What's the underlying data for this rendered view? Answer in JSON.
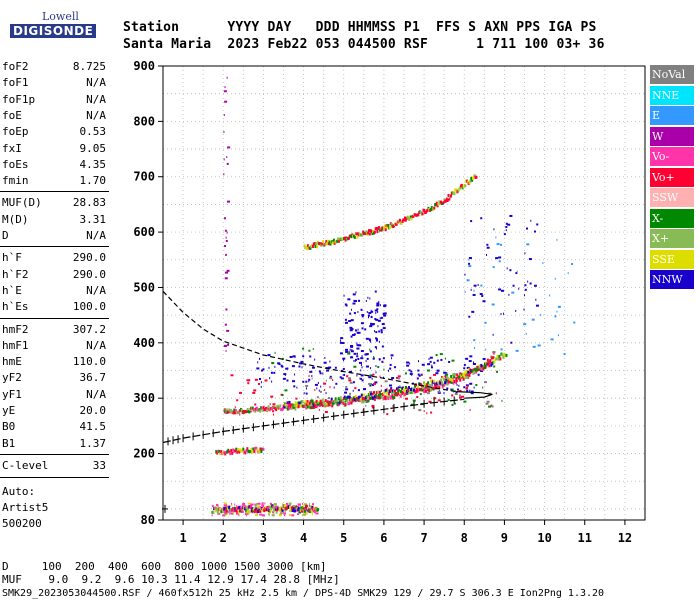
{
  "logo": {
    "line1": "Lowell",
    "line2": "DIGISONDE"
  },
  "header": {
    "row1": "Station      YYYY DAY   DDD HHMMSS P1  FFS S AXN PPS IGA PS",
    "row2": "Santa Maria  2023 Feb22 053 044500 RSF      1 711 100 03+ 36"
  },
  "params": {
    "group1": [
      {
        "name": "foF2",
        "value": "8.725"
      },
      {
        "name": "foF1",
        "value": "N/A"
      },
      {
        "name": "foF1p",
        "value": "N/A"
      },
      {
        "name": "foE",
        "value": "N/A"
      },
      {
        "name": "foEp",
        "value": "0.53"
      },
      {
        "name": "fxI",
        "value": "9.05"
      },
      {
        "name": "foEs",
        "value": "4.35"
      },
      {
        "name": "fmin",
        "value": "1.70"
      }
    ],
    "group2": [
      {
        "name": "MUF(D)",
        "value": "28.83"
      },
      {
        "name": "M(D)",
        "value": "3.31"
      },
      {
        "name": "D",
        "value": "N/A"
      }
    ],
    "group3": [
      {
        "name": "h`F",
        "value": "290.0"
      },
      {
        "name": "h`F2",
        "value": "290.0"
      },
      {
        "name": "h`E",
        "value": "N/A"
      },
      {
        "name": "h`Es",
        "value": "100.0"
      }
    ],
    "group4": [
      {
        "name": "hmF2",
        "value": "307.2"
      },
      {
        "name": "hmF1",
        "value": "N/A"
      },
      {
        "name": "hmE",
        "value": "110.0"
      },
      {
        "name": "yF2",
        "value": "36.7"
      },
      {
        "name": "yF1",
        "value": "N/A"
      },
      {
        "name": "yE",
        "value": "20.0"
      },
      {
        "name": "B0",
        "value": "41.5"
      },
      {
        "name": "B1",
        "value": "1.37"
      }
    ],
    "group5": [
      {
        "name": "C-level",
        "value": "33"
      }
    ]
  },
  "autoscale": {
    "line1": "Auto:",
    "line2": "Artist5",
    "line3": "500200"
  },
  "legend": [
    {
      "label": "NoVal",
      "color": "#808080"
    },
    {
      "label": "NNE",
      "color": "#00e5ff"
    },
    {
      "label": "E",
      "color": "#3399ff"
    },
    {
      "label": "W",
      "color": "#aa00aa"
    },
    {
      "label": "Vo-",
      "color": "#ff33aa"
    },
    {
      "label": "Vo+",
      "color": "#ff0033"
    },
    {
      "label": "SSW",
      "color": "#ffb0b0"
    },
    {
      "label": "X-",
      "color": "#008800"
    },
    {
      "label": "X+",
      "color": "#88bb55"
    },
    {
      "label": "SSE",
      "color": "#dddd00"
    },
    {
      "label": "NNW",
      "color": "#1a00cc"
    }
  ],
  "footer": {
    "d_line": "D     100  200  400  600  800 1000 1500 3000 [km]",
    "muf_line": "MUF    9.0  9.2  9.6 10.3 11.4 12.9 17.4 28.8 [MHz]",
    "info_line": "SMK29_2023053044500.RSF / 460fx512h 25 kHz 2.5 km / DPS-4D SMK29 129 / 29.7 S 306.3 E Ion2Png 1.3.20"
  },
  "chart_data": {
    "type": "scatter",
    "xlim": [
      0.5,
      12.5
    ],
    "ylim": [
      80,
      900
    ],
    "x_ticks": [
      1,
      2,
      3,
      4,
      5,
      6,
      7,
      8,
      9,
      10,
      11,
      12
    ],
    "y_ticks": [
      80,
      200,
      300,
      400,
      500,
      600,
      700,
      800,
      900
    ],
    "grid": true,
    "legend_position": "right",
    "traces": {
      "f2_o_trace": [
        [
          2.0,
          278
        ],
        [
          3.0,
          283
        ],
        [
          4.0,
          288
        ],
        [
          5.0,
          295
        ],
        [
          6.0,
          305
        ],
        [
          7.0,
          318
        ],
        [
          7.5,
          328
        ],
        [
          8.0,
          342
        ],
        [
          8.5,
          362
        ],
        [
          8.73,
          382
        ]
      ],
      "f2_x_trace": [
        [
          3.5,
          290
        ],
        [
          4.5,
          295
        ],
        [
          5.5,
          305
        ],
        [
          6.5,
          318
        ],
        [
          7.5,
          335
        ],
        [
          8.5,
          360
        ],
        [
          9.05,
          385
        ]
      ],
      "f2_multi_trace": [
        [
          4.0,
          575
        ],
        [
          5.0,
          590
        ],
        [
          6.0,
          610
        ],
        [
          7.0,
          640
        ],
        [
          7.5,
          660
        ],
        [
          8.0,
          690
        ],
        [
          8.3,
          705
        ]
      ],
      "es_trace": [
        [
          1.7,
          100
        ],
        [
          2.5,
          102
        ],
        [
          3.5,
          104
        ],
        [
          4.35,
          102
        ]
      ],
      "es_second_hop": [
        [
          1.8,
          205
        ],
        [
          3.0,
          210
        ]
      ]
    },
    "profile_curve": {
      "hidden_part": [
        [
          0.5,
          493
        ],
        [
          1.0,
          455
        ],
        [
          1.5,
          425
        ],
        [
          2.0,
          403
        ],
        [
          3.0,
          378
        ],
        [
          4.0,
          362
        ],
        [
          5.0,
          348
        ],
        [
          6.0,
          336
        ],
        [
          7.0,
          322
        ],
        [
          7.8,
          312
        ]
      ],
      "nose": [
        [
          7.8,
          312
        ],
        [
          8.4,
          310
        ],
        [
          8.7,
          307
        ],
        [
          8.5,
          302
        ],
        [
          8.0,
          300
        ]
      ],
      "lower_branch": [
        [
          0.5,
          220
        ],
        [
          1.0,
          228
        ],
        [
          2.0,
          240
        ],
        [
          3.0,
          250
        ],
        [
          4.0,
          260
        ],
        [
          5.0,
          270
        ],
        [
          6.0,
          280
        ],
        [
          7.0,
          290
        ],
        [
          8.0,
          298
        ]
      ]
    },
    "clouds": [
      {
        "color": "#1a00cc",
        "x": [
          4.9,
          6.0
        ],
        "y": [
          370,
          495
        ],
        "n": 120
      },
      {
        "color": "#1a00cc",
        "x": [
          4.0,
          8.5
        ],
        "y": [
          310,
          380
        ],
        "n": 160
      },
      {
        "color": "#1a00cc",
        "x": [
          2.8,
          4.0
        ],
        "y": [
          320,
          380
        ],
        "n": 40
      },
      {
        "color": "#1a00cc",
        "x": [
          8.0,
          9.9
        ],
        "y": [
          400,
          640
        ],
        "n": 55
      },
      {
        "color": "#3399ff",
        "x": [
          8.0,
          10.8
        ],
        "y": [
          380,
          600
        ],
        "n": 40
      },
      {
        "color": "#aa00aa",
        "x": [
          2.0,
          2.1
        ],
        "y": [
          380,
          890
        ],
        "n": 30
      },
      {
        "color": "#ff33aa",
        "x": [
          1.7,
          4.3
        ],
        "y": [
          90,
          112
        ],
        "n": 110
      },
      {
        "color": "#dddd00",
        "x": [
          1.9,
          4.3
        ],
        "y": [
          90,
          112
        ],
        "n": 40
      },
      {
        "color": "#88bb55",
        "x": [
          1.9,
          4.3
        ],
        "y": [
          90,
          112
        ],
        "n": 40
      },
      {
        "color": "#ff0033",
        "x": [
          2.0,
          8.8
        ],
        "y": [
          272,
          345
        ],
        "n": 90
      },
      {
        "color": "#008800",
        "x": [
          3.0,
          9.0
        ],
        "y": [
          285,
          395
        ],
        "n": 50
      },
      {
        "color": "#808080",
        "x": [
          4.0,
          8.7
        ],
        "y": [
          280,
          340
        ],
        "n": 40
      }
    ]
  }
}
